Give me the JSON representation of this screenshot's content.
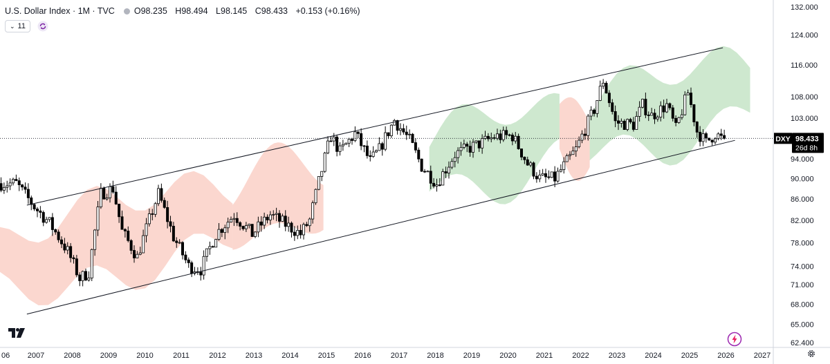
{
  "header": {
    "title": "U.S. Dollar Index · 1M · TVC",
    "ohlc": [
      {
        "k": "O",
        "v": "98.235"
      },
      {
        "k": "H",
        "v": "98.494"
      },
      {
        "k": "L",
        "v": "98.145"
      },
      {
        "k": "C",
        "v": "98.433"
      }
    ],
    "change": "+0.153 (+0.16%)"
  },
  "controls": {
    "indicator_count": "11"
  },
  "icons": {
    "indicators_toggle": "chevron-down-icon",
    "refresh": "refresh-icon",
    "logo": "tradingview-logo-icon",
    "flash": "lightning-icon",
    "settings": "gear-icon"
  },
  "colors": {
    "up_candle": "#ffffff",
    "down_candle": "#000000",
    "candle_outline": "#000000",
    "cloud_bull": "#a5d6a7",
    "cloud_bear": "#f8b6a8",
    "price_label_bg": "#000000",
    "accent": "#7b1fa2"
  },
  "chart_data": {
    "type": "candlestick",
    "symbol": "DXY",
    "last_price": "98.433",
    "countdown": "26d 8h",
    "scale": "log",
    "y_ticks": [
      62.4,
      65.0,
      68.0,
      71.0,
      74.0,
      78.0,
      82.0,
      86.0,
      90.0,
      94.0,
      98.433,
      103.0,
      108.0,
      116.0,
      124.0,
      132.0
    ],
    "y_tick_labels": [
      "62.400",
      "65.000",
      "68.000",
      "71.000",
      "74.000",
      "78.000",
      "82.000",
      "86.000",
      "90.000",
      "94.000",
      "98.433",
      "103.000",
      "108.000",
      "116.000",
      "124.000",
      "132.000"
    ],
    "x_labels": [
      "06",
      "2007",
      "2008",
      "2009",
      "2010",
      "2011",
      "2012",
      "2013",
      "2014",
      "2015",
      "2016",
      "2017",
      "2018",
      "2019",
      "2020",
      "2021",
      "2022",
      "2023",
      "2024",
      "2025",
      "2026",
      "2027"
    ],
    "anchors": [
      [
        "2006-07",
        89.0
      ],
      [
        "2007-01",
        84.5
      ],
      [
        "2007-06",
        81.5
      ],
      [
        "2007-12",
        76.5
      ],
      [
        "2008-04",
        72.0
      ],
      [
        "2008-07",
        73.0
      ],
      [
        "2008-11",
        87.0
      ],
      [
        "2009-03",
        88.0
      ],
      [
        "2009-06",
        80.0
      ],
      [
        "2009-11",
        75.5
      ],
      [
        "2010-06",
        87.0
      ],
      [
        "2010-11",
        79.0
      ],
      [
        "2011-04",
        74.0
      ],
      [
        "2011-08",
        73.5
      ],
      [
        "2012-01",
        79.5
      ],
      [
        "2012-07",
        83.0
      ],
      [
        "2013-01",
        79.5
      ],
      [
        "2013-07",
        83.0
      ],
      [
        "2014-05",
        79.5
      ],
      [
        "2014-08",
        82.0
      ],
      [
        "2015-03",
        99.0
      ],
      [
        "2015-06",
        95.5
      ],
      [
        "2015-11",
        99.5
      ],
      [
        "2016-04",
        93.5
      ],
      [
        "2016-07",
        96.0
      ],
      [
        "2016-12",
        102.5
      ],
      [
        "2017-05",
        98.0
      ],
      [
        "2017-09",
        92.5
      ],
      [
        "2018-02",
        89.0
      ],
      [
        "2018-08",
        95.0
      ],
      [
        "2019-05",
        97.5
      ],
      [
        "2019-09",
        98.8
      ],
      [
        "2020-03",
        99.0
      ],
      [
        "2020-08",
        93.0
      ],
      [
        "2020-12",
        90.0
      ],
      [
        "2021-05",
        90.0
      ],
      [
        "2021-12",
        96.0
      ],
      [
        "2022-06",
        105.0
      ],
      [
        "2022-09",
        112.0
      ],
      [
        "2023-01",
        102.0
      ],
      [
        "2023-07",
        101.5
      ],
      [
        "2023-10",
        106.0
      ],
      [
        "2024-01",
        103.5
      ],
      [
        "2024-06",
        106.0
      ],
      [
        "2024-09",
        100.5
      ],
      [
        "2025-01",
        109.0
      ],
      [
        "2025-04",
        100.0
      ],
      [
        "2025-07",
        97.5
      ],
      [
        "2025-10",
        99.5
      ],
      [
        "2025-12",
        98.433
      ]
    ],
    "channel": {
      "upper": [
        [
          "2006-10",
          84.8
        ],
        [
          "2025-12",
          120.5
        ]
      ],
      "lower": [
        [
          "2006-10",
          66.5
        ],
        [
          "2026-04",
          98.0
        ]
      ]
    },
    "cloud": [
      {
        "sentiment": "bear",
        "span": [
          "2006-01",
          "2012-06"
        ]
      },
      {
        "sentiment": "bear",
        "span": [
          "2012-06",
          "2014-12"
        ]
      },
      {
        "sentiment": "bull",
        "span": [
          "2017-11",
          "2021-06"
        ]
      },
      {
        "sentiment": "bear",
        "span": [
          "2021-06",
          "2022-04"
        ]
      },
      {
        "sentiment": "bull",
        "span": [
          "2022-04",
          "2026-09"
        ]
      }
    ]
  }
}
